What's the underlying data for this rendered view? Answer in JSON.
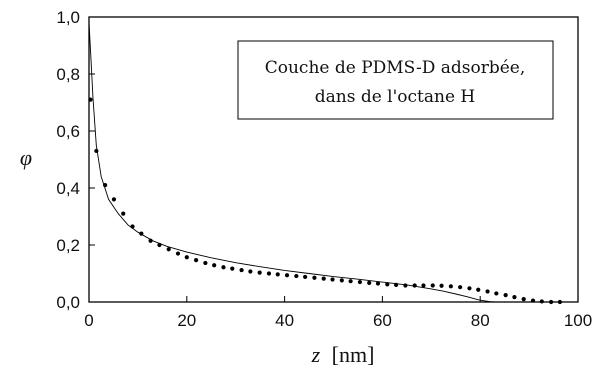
{
  "chart_data": {
    "type": "scatter",
    "title": "",
    "xlabel_var": "z",
    "xlabel_unit": "[nm]",
    "ylabel": "φ",
    "xlim": [
      0,
      100
    ],
    "ylim": [
      0,
      1.0
    ],
    "x_ticks": [
      "0",
      "20",
      "40",
      "60",
      "80",
      "100"
    ],
    "y_ticks": [
      "0,0",
      "0,2",
      "0,4",
      "0,6",
      "0,8",
      "1,0"
    ],
    "grid": false,
    "legend_lines": [
      "Couche de PDMS-D adsorbée,",
      "dans de l'octane H"
    ],
    "legend_position": "top-right",
    "series": [
      {
        "style": "points",
        "color": "#000000",
        "x": [
          0.3,
          1.5,
          3.3,
          5.1,
          7.0,
          8.9,
          10.7,
          12.6,
          14.4,
          16.3,
          18.2,
          20.0,
          21.9,
          23.8,
          25.6,
          27.5,
          29.3,
          31.2,
          33.0,
          34.9,
          36.8,
          38.6,
          40.5,
          42.4,
          44.2,
          46.1,
          48.0,
          49.8,
          51.7,
          53.5,
          55.4,
          57.3,
          59.1,
          61.0,
          62.8,
          64.7,
          66.6,
          68.4,
          70.3,
          72.1,
          74.0,
          75.9,
          77.8,
          79.6,
          81.5,
          83.3,
          85.2,
          87.0,
          88.9,
          90.8,
          92.6,
          94.5,
          96.3
        ],
        "y": [
          0.71,
          0.53,
          0.41,
          0.36,
          0.31,
          0.265,
          0.24,
          0.215,
          0.2,
          0.185,
          0.17,
          0.157,
          0.147,
          0.137,
          0.129,
          0.122,
          0.117,
          0.112,
          0.107,
          0.103,
          0.1,
          0.097,
          0.094,
          0.091,
          0.088,
          0.085,
          0.082,
          0.079,
          0.076,
          0.073,
          0.07,
          0.067,
          0.065,
          0.062,
          0.06,
          0.058,
          0.058,
          0.058,
          0.058,
          0.057,
          0.055,
          0.052,
          0.048,
          0.043,
          0.037,
          0.03,
          0.024,
          0.017,
          0.01,
          0.005,
          0.002,
          0.0,
          0.0
        ]
      },
      {
        "style": "line",
        "color": "#000000",
        "x": [
          0,
          0.4,
          0.8,
          1.5,
          2.5,
          4,
          6,
          8,
          10,
          13,
          16,
          20,
          25,
          30,
          35,
          40,
          45,
          50,
          55,
          60,
          65,
          70,
          72.5,
          75,
          77.5,
          79.5,
          81,
          82,
          83
        ],
        "y": [
          0.98,
          0.85,
          0.72,
          0.55,
          0.44,
          0.36,
          0.31,
          0.27,
          0.245,
          0.215,
          0.195,
          0.175,
          0.155,
          0.138,
          0.124,
          0.111,
          0.1,
          0.089,
          0.08,
          0.07,
          0.06,
          0.046,
          0.038,
          0.028,
          0.018,
          0.008,
          0.004,
          0.001,
          0.0
        ]
      }
    ]
  }
}
